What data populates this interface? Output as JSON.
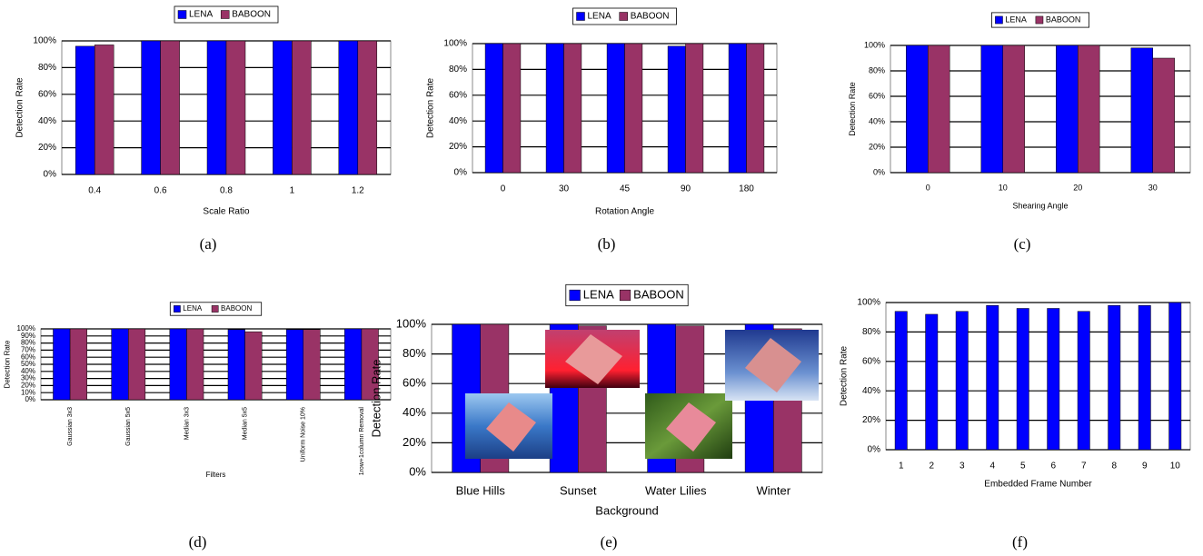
{
  "chart_data": [
    {
      "type": "bar",
      "caption": "(a)",
      "xlabel": "Scale Ratio",
      "ylabel": "Detection Rate",
      "categories": [
        "0.4",
        "0.6",
        "0.8",
        "1",
        "1.2"
      ],
      "series": [
        {
          "name": "LENA",
          "color": "#0000ff",
          "values": [
            96,
            100,
            100,
            100,
            100
          ]
        },
        {
          "name": "BABOON",
          "color": "#993366",
          "values": [
            97,
            100,
            100,
            100,
            100
          ]
        }
      ],
      "ylim": [
        0,
        100
      ],
      "yticks": [
        {
          "value": 0,
          "label": "0%"
        },
        {
          "value": 20,
          "label": "20%"
        },
        {
          "value": 40,
          "label": "40%"
        },
        {
          "value": 60,
          "label": "60%"
        },
        {
          "value": 80,
          "label": "80%"
        },
        {
          "value": 100,
          "label": "100%"
        }
      ],
      "grid": true
    },
    {
      "type": "bar",
      "caption": "(b)",
      "xlabel": "Rotation Angle",
      "ylabel": "Detection Rate",
      "categories": [
        "0",
        "30",
        "45",
        "90",
        "180"
      ],
      "series": [
        {
          "name": "LENA",
          "color": "#0000ff",
          "values": [
            100,
            100,
            100,
            98,
            100
          ]
        },
        {
          "name": "BABOON",
          "color": "#993366",
          "values": [
            100,
            100,
            100,
            100,
            100
          ]
        }
      ],
      "ylim": [
        0,
        100
      ],
      "yticks": [
        {
          "value": 0,
          "label": "0%"
        },
        {
          "value": 20,
          "label": "20%"
        },
        {
          "value": 40,
          "label": "40%"
        },
        {
          "value": 60,
          "label": "60%"
        },
        {
          "value": 80,
          "label": "80%"
        },
        {
          "value": 100,
          "label": "100%"
        }
      ],
      "grid": true
    },
    {
      "type": "bar",
      "caption": "(c)",
      "xlabel": "Shearing Angle",
      "ylabel": "Detection Rate",
      "categories": [
        "0",
        "10",
        "20",
        "30"
      ],
      "series": [
        {
          "name": "LENA",
          "color": "#0000ff",
          "values": [
            100,
            100,
            100,
            98
          ]
        },
        {
          "name": "BABOON",
          "color": "#993366",
          "values": [
            100,
            100,
            100,
            90
          ]
        }
      ],
      "ylim": [
        0,
        100
      ],
      "yticks": [
        {
          "value": 0,
          "label": "0%"
        },
        {
          "value": 20,
          "label": "20%"
        },
        {
          "value": 40,
          "label": "40%"
        },
        {
          "value": 60,
          "label": "60%"
        },
        {
          "value": 80,
          "label": "80%"
        },
        {
          "value": 100,
          "label": "100%"
        }
      ],
      "grid": true
    },
    {
      "type": "bar",
      "caption": "(d)",
      "xlabel": "Filters",
      "ylabel": "Detection Rate",
      "categories": [
        "Gaussian 3x3",
        "Gaussian 5x5",
        "Median 3x3",
        "Median 5x5",
        "Uniform Noise 10%",
        "1row+1column Removal"
      ],
      "series": [
        {
          "name": "LENA",
          "color": "#0000ff",
          "values": [
            100,
            100,
            100,
            99,
            99,
            100
          ]
        },
        {
          "name": "BABOON",
          "color": "#993366",
          "values": [
            100,
            100,
            100,
            96,
            99,
            100
          ]
        }
      ],
      "ylim": [
        0,
        100
      ],
      "yticks": [
        {
          "value": 0,
          "label": "0%"
        },
        {
          "value": 10,
          "label": "10%"
        },
        {
          "value": 20,
          "label": "20%"
        },
        {
          "value": 30,
          "label": "30%"
        },
        {
          "value": 40,
          "label": "40%"
        },
        {
          "value": 50,
          "label": "50%"
        },
        {
          "value": 60,
          "label": "60%"
        },
        {
          "value": 70,
          "label": "70%"
        },
        {
          "value": 80,
          "label": "80%"
        },
        {
          "value": 90,
          "label": "90%"
        },
        {
          "value": 100,
          "label": "100%"
        }
      ],
      "grid": true
    },
    {
      "type": "bar",
      "caption": "(e)",
      "xlabel": "Background",
      "ylabel": "Detection Rate",
      "categories": [
        "Blue Hills",
        "Sunset",
        "Water Lilies",
        "Winter"
      ],
      "series": [
        {
          "name": "LENA",
          "color": "#0000ff",
          "values": [
            100,
            100,
            100,
            100
          ]
        },
        {
          "name": "BABOON",
          "color": "#993366",
          "values": [
            100,
            99,
            99,
            97
          ]
        }
      ],
      "ylim": [
        0,
        100
      ],
      "yticks": [
        {
          "value": 0,
          "label": "0%"
        },
        {
          "value": 20,
          "label": "20%"
        },
        {
          "value": 40,
          "label": "40%"
        },
        {
          "value": 60,
          "label": "60%"
        },
        {
          "value": 80,
          "label": "80%"
        },
        {
          "value": 100,
          "label": "100%"
        }
      ],
      "grid": true
    },
    {
      "type": "bar",
      "caption": "(f)",
      "xlabel": "Embedded Frame Number",
      "ylabel": "Detection Rate",
      "categories": [
        "1",
        "2",
        "3",
        "4",
        "5",
        "6",
        "7",
        "8",
        "9",
        "10"
      ],
      "color": "#0000ff",
      "values": [
        94,
        92,
        94,
        98,
        96,
        96,
        94,
        98,
        98,
        100
      ],
      "ylim": [
        0,
        100
      ],
      "yticks": [
        {
          "value": 0,
          "label": "0%"
        },
        {
          "value": 20,
          "label": "20%"
        },
        {
          "value": 40,
          "label": "40%"
        },
        {
          "value": 60,
          "label": "60%"
        },
        {
          "value": 80,
          "label": "80%"
        },
        {
          "value": 100,
          "label": "100%"
        }
      ],
      "grid": true
    }
  ]
}
